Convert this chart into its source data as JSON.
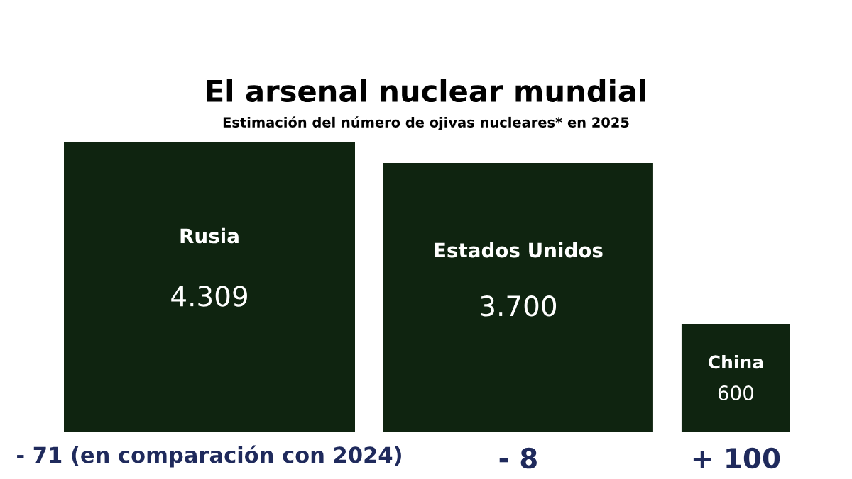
{
  "chart_data": {
    "type": "other",
    "title": "El arsenal nuclear mundial",
    "subtitle": "Estimación del número de ojivas nucleares* en 2025",
    "categories": [
      "Rusia",
      "Estados Unidos",
      "China"
    ],
    "values": [
      4309,
      3700,
      600
    ],
    "value_labels": [
      "4.309",
      "3.700",
      "600"
    ],
    "color": "#0f2410",
    "annotations": [
      {
        "text": "- 71 (en comparación con 2024)",
        "x": "Rusia"
      },
      {
        "text": "- 8",
        "x": "Estados Unidos"
      },
      {
        "text": "+ 100",
        "x": "China"
      }
    ]
  }
}
